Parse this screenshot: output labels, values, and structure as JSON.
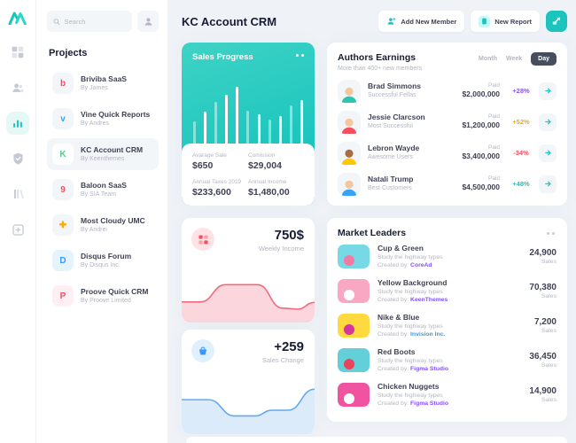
{
  "colors": {
    "accent_teal": "#1BC5BD",
    "purple": "#8950FC",
    "orange": "#FFA800",
    "red": "#F64E60",
    "blue": "#3699FF",
    "dark_pill": "#464E5F",
    "muted": "#B5B5C3",
    "main_bg": "#EFF3F8"
  },
  "sidebar": {
    "search_placeholder": "Search",
    "projects_title": "Projects",
    "projects": [
      {
        "name": "Briviba SaaS",
        "by": "By James",
        "letter": "b",
        "letter_color": "#F64E60",
        "tile_bg": "#F3F6F9"
      },
      {
        "name": "Vine Quick Reports",
        "by": "By Andres",
        "letter": "v",
        "letter_color": "#36A3F7",
        "tile_bg": "#F3F6F9"
      },
      {
        "name": "KC Account CRM",
        "by": "By Keenthemes",
        "letter": "K",
        "letter_color": "#50CD89",
        "tile_bg": "#FFFFFF"
      },
      {
        "name": "Baloon SaaS",
        "by": "By SIA Team",
        "letter": "9",
        "letter_color": "#F64E60",
        "tile_bg": "#F3F6F9"
      },
      {
        "name": "Most Cloudy UMC",
        "by": "By Andrei",
        "letter": "✚",
        "letter_color": "#FFA800",
        "tile_bg": "#F3F6F9"
      },
      {
        "name": "Disqus Forum",
        "by": "By Disqus Inc.",
        "letter": "D",
        "letter_color": "#3699FF",
        "tile_bg": "#E4F3FC"
      },
      {
        "name": "Proove Quick CRM",
        "by": "By Proove Limited",
        "letter": "P",
        "letter_color": "#F64E60",
        "tile_bg": "#FDEFF3"
      }
    ]
  },
  "header": {
    "title": "KC Account CRM",
    "add_member_label": "Add New Member",
    "new_report_label": "New Report"
  },
  "sales_progress": {
    "title": "Sales Progress",
    "stats": [
      {
        "label": "Avarage Sale",
        "value": "$650"
      },
      {
        "label": "Comission",
        "value": "$29,004"
      },
      {
        "label": "Annual Taxes 2019",
        "value": "$233,600"
      },
      {
        "label": "Annual Income",
        "value": "$1,480,00"
      }
    ],
    "chart_data": {
      "type": "bar",
      "values": [
        34,
        48,
        64,
        74,
        86,
        50,
        44,
        36,
        42,
        58,
        66
      ],
      "opacities": [
        0.45,
        1,
        0.45,
        1,
        1,
        0.45,
        1,
        0.45,
        1,
        0.45,
        1
      ],
      "bar_color": "#FFFFFF"
    }
  },
  "authors": {
    "title": "Authors Earnings",
    "subtitle": "More than 400+ new members",
    "tabs": [
      "Month",
      "Week",
      "Day"
    ],
    "active_tab": "Day",
    "rows": [
      {
        "name": "Brad Simmons",
        "group": "Successful Fellas",
        "paid_label": "Paid",
        "amount": "$2,000,000",
        "percent": "+28%",
        "percent_color": "#8950FC",
        "skin": "#F3C79E",
        "shirt": "#2BC6AE"
      },
      {
        "name": "Jessie Clarcson",
        "group": "Most Successful",
        "paid_label": "Paid",
        "amount": "$1,200,000",
        "percent": "+52%",
        "percent_color": "#FFA800",
        "skin": "#F3C79E",
        "shirt": "#F64E60"
      },
      {
        "name": "Lebron Wayde",
        "group": "Awesome Users",
        "paid_label": "Paid",
        "amount": "$3,400,000",
        "percent": "-34%",
        "percent_color": "#F64E60",
        "skin": "#A96B3F",
        "shirt": "#FFC700"
      },
      {
        "name": "Natali Trump",
        "group": "Best Customers",
        "paid_label": "Paid",
        "amount": "$4,500,000",
        "percent": "+48%",
        "percent_color": "#1BC5BD",
        "skin": "#F3C79E",
        "shirt": "#36A3F7"
      }
    ]
  },
  "weekly_income": {
    "value": "750$",
    "label": "Weekly Income",
    "chart_data": {
      "type": "area",
      "points": [
        [
          0,
          57
        ],
        [
          14,
          57
        ],
        [
          33,
          21
        ],
        [
          57,
          21
        ],
        [
          76,
          70
        ],
        [
          87,
          72
        ],
        [
          100,
          58
        ]
      ],
      "line_color": "#F4697D",
      "fill_color": "#FBD6DC"
    }
  },
  "sales_change": {
    "value": "+259",
    "label": "Sales Change",
    "chart_data": {
      "type": "area",
      "points": [
        [
          0,
          28
        ],
        [
          20,
          28
        ],
        [
          40,
          62
        ],
        [
          55,
          62
        ],
        [
          68,
          50
        ],
        [
          80,
          50
        ],
        [
          100,
          6
        ]
      ],
      "line_color": "#61A8F3",
      "fill_color": "#DCEBFA"
    }
  },
  "market_leaders": {
    "title": "Market Leaders",
    "rows": [
      {
        "name": "Cup & Green",
        "desc": "Study the highway types",
        "created_label": "Created by:",
        "creator": "CoreAd",
        "creator_color": "#8950FC",
        "sales": "24,900",
        "sales_label": "Sales",
        "tile": "#77D9E6",
        "accent": "#F27BA6"
      },
      {
        "name": "Yellow Background",
        "desc": "Study the highway types",
        "created_label": "Created by:",
        "creator": "KeenThemes",
        "creator_color": "#8950FC",
        "sales": "70,380",
        "sales_label": "Sales",
        "tile": "#F9A8C4",
        "accent": "#FFFFFF"
      },
      {
        "name": "Nike & Blue",
        "desc": "Study the highway types",
        "created_label": "Created by:",
        "creator": "Invision Inc.",
        "creator_color": "#3699FF",
        "sales": "7,200",
        "sales_label": "Sales",
        "tile": "#FFD93D",
        "accent": "#D6359B"
      },
      {
        "name": "Red Boots",
        "desc": "Study the highway types",
        "created_label": "Created by:",
        "creator": "Figma Studio",
        "creator_color": "#8950FC",
        "sales": "36,450",
        "sales_label": "Sales",
        "tile": "#63CFD9",
        "accent": "#E8445A"
      },
      {
        "name": "Chicken Nuggets",
        "desc": "Study the highway types",
        "created_label": "Created by:",
        "creator": "Figma Studio",
        "creator_color": "#8950FC",
        "sales": "14,900",
        "sales_label": "Sales",
        "tile": "#F0539F",
        "accent": "#FFFFFF"
      }
    ]
  }
}
